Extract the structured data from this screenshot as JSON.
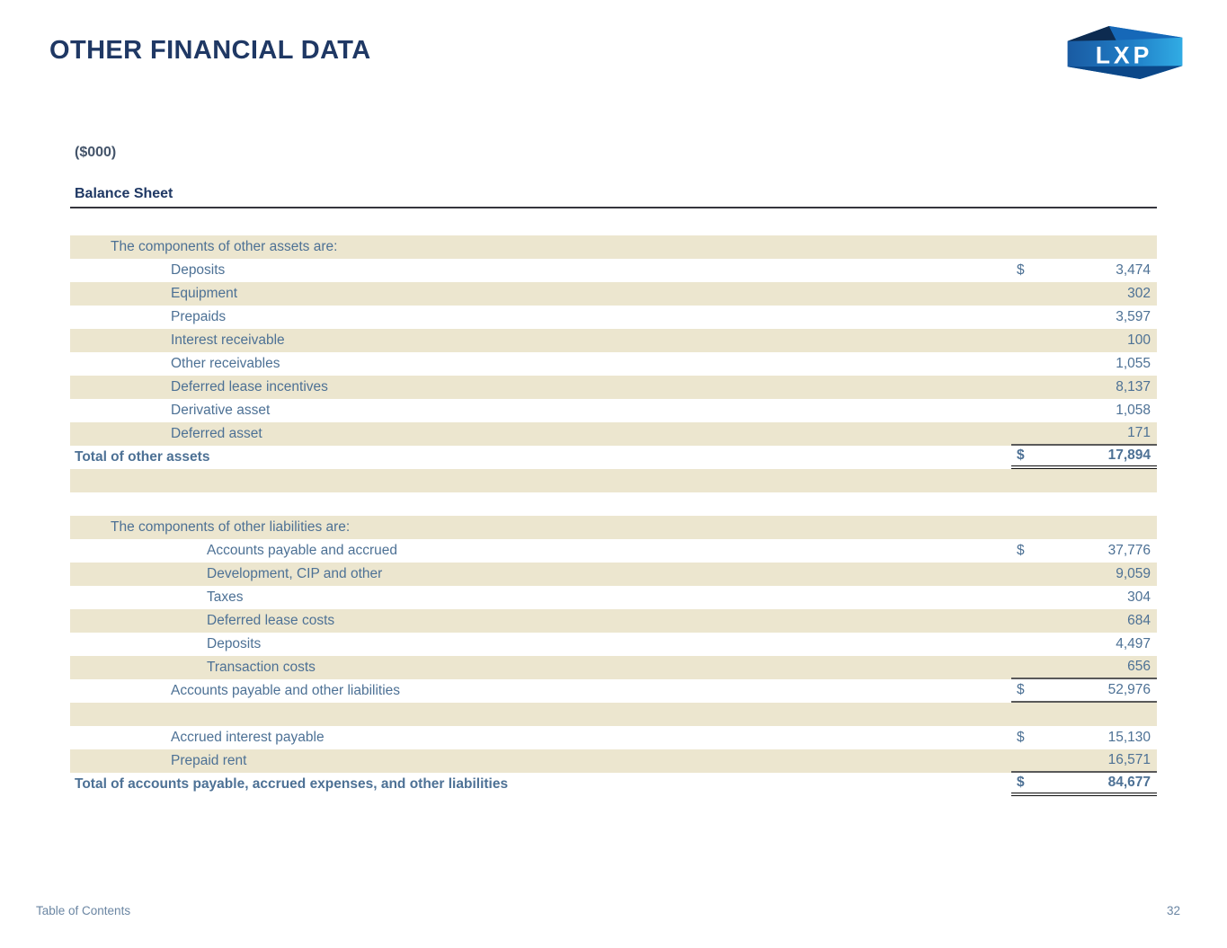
{
  "header": {
    "title": "OTHER FINANCIAL DATA"
  },
  "logo": {
    "text": "LXP"
  },
  "table": {
    "units_label": "($000)",
    "section_title": "Balance Sheet",
    "rows": [
      {
        "label": "The components of other assets are:",
        "indent": 1,
        "shaded": true
      },
      {
        "label": "Deposits",
        "indent": 2,
        "dollar": "$",
        "value": "3,474"
      },
      {
        "label": "Equipment",
        "indent": 2,
        "value": "302",
        "shaded": true
      },
      {
        "label": "Prepaids",
        "indent": 2,
        "value": "3,597"
      },
      {
        "label": "Interest receivable",
        "indent": 2,
        "value": "100",
        "shaded": true
      },
      {
        "label": "Other receivables",
        "indent": 2,
        "value": "1,055"
      },
      {
        "label": "Deferred lease incentives",
        "indent": 2,
        "value": "8,137",
        "shaded": true
      },
      {
        "label": "Derivative asset",
        "indent": 2,
        "value": "1,058"
      },
      {
        "label": "Deferred asset",
        "indent": 2,
        "value": "171",
        "shaded": true,
        "rule": "single"
      },
      {
        "label": "Total of other assets",
        "indent": 0,
        "dollar": "$",
        "value": "17,894",
        "bold": true,
        "rule": "double"
      },
      {
        "shaded": true
      },
      {},
      {
        "label": "The components of other liabilities are:",
        "indent": 1,
        "shaded": true
      },
      {
        "label": "Accounts payable and accrued",
        "indent": 3,
        "dollar": "$",
        "value": "37,776"
      },
      {
        "label": "Development, CIP and other",
        "indent": 3,
        "value": "9,059",
        "shaded": true
      },
      {
        "label": "Taxes",
        "indent": 3,
        "value": "304"
      },
      {
        "label": "Deferred lease costs",
        "indent": 3,
        "value": "684",
        "shaded": true
      },
      {
        "label": "Deposits",
        "indent": 3,
        "value": "4,497"
      },
      {
        "label": "Transaction costs",
        "indent": 3,
        "value": "656",
        "shaded": true,
        "rule": "single"
      },
      {
        "label": "Accounts payable and other liabilities",
        "indent": 2,
        "dollar": "$",
        "value": "52,976",
        "rule": "single"
      },
      {
        "shaded": true
      },
      {
        "label": "Accrued interest payable",
        "indent": 2,
        "dollar": "$",
        "value": "15,130"
      },
      {
        "label": "Prepaid rent",
        "indent": 2,
        "value": "16,571",
        "shaded": true,
        "rule": "single"
      },
      {
        "label": "Total of accounts payable, accrued expenses, and other liabilities",
        "indent": 0,
        "dollar": "$",
        "value": "84,677",
        "bold": true,
        "rule": "double"
      }
    ]
  },
  "footer": {
    "table_of_contents": "Table of Contents",
    "page_number": "32"
  },
  "colors": {
    "title_navy": "#1f3864",
    "row_shade_beige": "#ece6cf",
    "table_text_blue": "#4d7195",
    "units_gray_blue": "#44546a",
    "footer_blue": "#6b86a3",
    "rule_single": "#595959",
    "rule_double": "#101010",
    "logo_dark_navy": "#0d2b50",
    "logo_mid_blue": "#1668b8",
    "logo_bright_blue": "#31ace4"
  }
}
